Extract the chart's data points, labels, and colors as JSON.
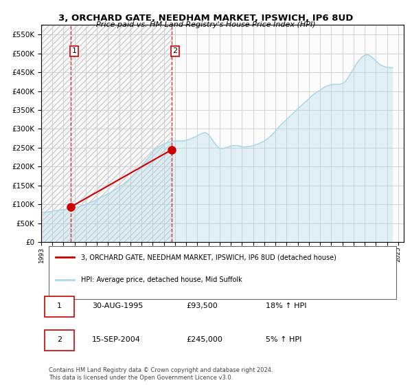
{
  "title": "3, ORCHARD GATE, NEEDHAM MARKET, IPSWICH, IP6 8UD",
  "subtitle": "Price paid vs. HM Land Registry's House Price Index (HPI)",
  "legend_line1": "3, ORCHARD GATE, NEEDHAM MARKET, IPSWICH, IP6 8UD (detached house)",
  "legend_line2": "HPI: Average price, detached house, Mid Suffolk",
  "sale1_label": "1",
  "sale1_date": "30-AUG-1995",
  "sale1_price": "£93,500",
  "sale1_hpi": "18% ↑ HPI",
  "sale2_label": "2",
  "sale2_date": "15-SEP-2004",
  "sale2_price": "£245,000",
  "sale2_hpi": "5% ↑ HPI",
  "footer": "Contains HM Land Registry data © Crown copyright and database right 2024.\nThis data is licensed under the Open Government Licence v3.0.",
  "hpi_color": "#add8e6",
  "sale_color": "#cc0000",
  "sale1_x": 1995.66,
  "sale1_y": 93500,
  "sale2_x": 2004.71,
  "sale2_y": 245000,
  "vline1_x": 1995.66,
  "vline2_x": 2004.71,
  "ylim_min": 0,
  "ylim_max": 575000,
  "xlim_min": 1993,
  "xlim_max": 2025.5,
  "yticks": [
    0,
    50000,
    100000,
    150000,
    200000,
    250000,
    300000,
    350000,
    400000,
    450000,
    500000,
    550000
  ],
  "xticks": [
    1993,
    1994,
    1995,
    1996,
    1997,
    1998,
    1999,
    2000,
    2001,
    2002,
    2003,
    2004,
    2005,
    2006,
    2007,
    2008,
    2009,
    2010,
    2011,
    2012,
    2013,
    2014,
    2015,
    2016,
    2017,
    2018,
    2019,
    2020,
    2021,
    2022,
    2023,
    2024,
    2025
  ],
  "hpi_x": [
    1993,
    1993.25,
    1993.5,
    1993.75,
    1994,
    1994.25,
    1994.5,
    1994.75,
    1995,
    1995.25,
    1995.5,
    1995.75,
    1996,
    1996.25,
    1996.5,
    1996.75,
    1997,
    1997.25,
    1997.5,
    1997.75,
    1998,
    1998.25,
    1998.5,
    1998.75,
    1999,
    1999.25,
    1999.5,
    1999.75,
    2000,
    2000.25,
    2000.5,
    2000.75,
    2001,
    2001.25,
    2001.5,
    2001.75,
    2002,
    2002.25,
    2002.5,
    2002.75,
    2003,
    2003.25,
    2003.5,
    2003.75,
    2004,
    2004.25,
    2004.5,
    2004.75,
    2005,
    2005.25,
    2005.5,
    2005.75,
    2006,
    2006.25,
    2006.5,
    2006.75,
    2007,
    2007.25,
    2007.5,
    2007.75,
    2008,
    2008.25,
    2008.5,
    2008.75,
    2009,
    2009.25,
    2009.5,
    2009.75,
    2010,
    2010.25,
    2010.5,
    2010.75,
    2011,
    2011.25,
    2011.5,
    2011.75,
    2012,
    2012.25,
    2012.5,
    2012.75,
    2013,
    2013.25,
    2013.5,
    2013.75,
    2014,
    2014.25,
    2014.5,
    2014.75,
    2015,
    2015.25,
    2015.5,
    2015.75,
    2016,
    2016.25,
    2016.5,
    2016.75,
    2017,
    2017.25,
    2017.5,
    2017.75,
    2018,
    2018.25,
    2018.5,
    2018.75,
    2019,
    2019.25,
    2019.5,
    2019.75,
    2020,
    2020.25,
    2020.5,
    2020.75,
    2021,
    2021.25,
    2021.5,
    2021.75,
    2022,
    2022.25,
    2022.5,
    2022.75,
    2023,
    2023.25,
    2023.5,
    2023.75,
    2024,
    2024.25,
    2024.5
  ],
  "hpi_y": [
    79000,
    79500,
    80000,
    80500,
    82000,
    83000,
    84000,
    85000,
    86000,
    87000,
    88000,
    89500,
    91000,
    93000,
    95000,
    97000,
    100000,
    103000,
    106000,
    109000,
    113000,
    117000,
    121000,
    124000,
    128000,
    132000,
    137000,
    141000,
    146000,
    151000,
    157000,
    163000,
    170000,
    177000,
    184000,
    192000,
    201000,
    211000,
    220000,
    229000,
    238000,
    246000,
    252000,
    256000,
    260000,
    263000,
    265000,
    267000,
    268000,
    268000,
    268000,
    268000,
    270000,
    272000,
    275000,
    278000,
    282000,
    286000,
    289000,
    290000,
    285000,
    275000,
    264000,
    255000,
    248000,
    248000,
    250000,
    252000,
    255000,
    256000,
    256000,
    255000,
    252000,
    252000,
    253000,
    254000,
    256000,
    258000,
    261000,
    264000,
    268000,
    273000,
    279000,
    286000,
    294000,
    303000,
    311000,
    318000,
    325000,
    332000,
    339000,
    346000,
    353000,
    360000,
    367000,
    373000,
    380000,
    387000,
    393000,
    398000,
    403000,
    408000,
    412000,
    415000,
    417000,
    418000,
    418000,
    418000,
    420000,
    425000,
    435000,
    448000,
    460000,
    472000,
    482000,
    490000,
    495000,
    497000,
    493000,
    487000,
    480000,
    473000,
    468000,
    465000,
    463000,
    462000,
    462000
  ],
  "sale_line_x": [
    1995.66,
    2004.71
  ],
  "sale_line_y": [
    93500,
    245000
  ]
}
